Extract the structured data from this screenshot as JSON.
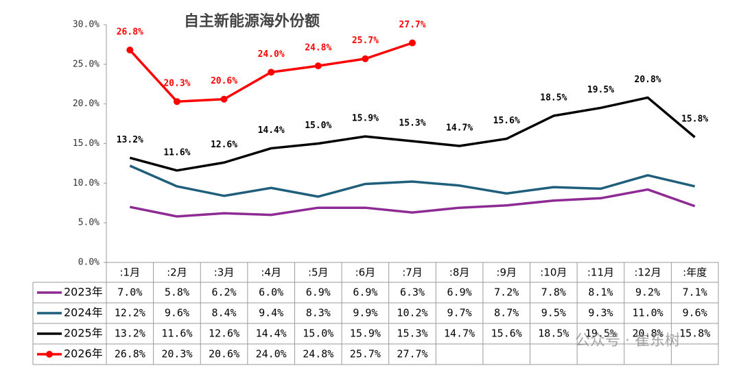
{
  "chart_data": {
    "type": "line",
    "title": "自主新能源海外份额",
    "categories": [
      ":1月",
      ":2月",
      ":3月",
      ":4月",
      ":5月",
      ":6月",
      ":7月",
      ":8月",
      ":9月",
      ":10月",
      ":11月",
      ":12月",
      ":年度"
    ],
    "ylim": [
      0,
      30
    ],
    "yticks": [
      {
        "value": 0,
        "label": "0.0%"
      },
      {
        "value": 5,
        "label": "5.0%"
      },
      {
        "value": 10,
        "label": "10.0%"
      },
      {
        "value": 15,
        "label": "15.0%"
      },
      {
        "value": 20,
        "label": "20.0%"
      },
      {
        "value": 25,
        "label": "25.0%"
      },
      {
        "value": 30,
        "label": "30.0%"
      }
    ],
    "series": [
      {
        "name": "2023年",
        "color": "#8e2a94",
        "data_labels": false,
        "markers": false,
        "values": [
          7.0,
          5.8,
          6.2,
          6.0,
          6.9,
          6.9,
          6.3,
          6.9,
          7.2,
          7.8,
          8.1,
          9.2,
          7.1
        ],
        "value_labels": [
          "7.0%",
          "5.8%",
          "6.2%",
          "6.0%",
          "6.9%",
          "6.9%",
          "6.3%",
          "6.9%",
          "7.2%",
          "7.8%",
          "8.1%",
          "9.2%",
          "7.1%"
        ]
      },
      {
        "name": "2024年",
        "color": "#1f5f7c",
        "data_labels": false,
        "markers": false,
        "values": [
          12.2,
          9.6,
          8.4,
          9.4,
          8.3,
          9.9,
          10.2,
          9.7,
          8.7,
          9.5,
          9.3,
          11.0,
          9.6
        ],
        "value_labels": [
          "12.2%",
          "9.6%",
          "8.4%",
          "9.4%",
          "8.3%",
          "9.9%",
          "10.2%",
          "9.7%",
          "8.7%",
          "9.5%",
          "9.3%",
          "11.0%",
          "9.6%"
        ]
      },
      {
        "name": "2025年",
        "color": "#000000",
        "data_labels": true,
        "markers": false,
        "values": [
          13.2,
          11.6,
          12.6,
          14.4,
          15.0,
          15.9,
          15.3,
          14.7,
          15.6,
          18.5,
          19.5,
          20.8,
          15.8
        ],
        "value_labels": [
          "13.2%",
          "11.6%",
          "12.6%",
          "14.4%",
          "15.0%",
          "15.9%",
          "15.3%",
          "14.7%",
          "15.6%",
          "18.5%",
          "19.5%",
          "20.8%",
          "15.8%"
        ]
      },
      {
        "name": "2026年",
        "color": "#ff0000",
        "data_labels": true,
        "markers": true,
        "values": [
          26.8,
          20.3,
          20.6,
          24.0,
          24.8,
          25.7,
          27.7,
          null,
          null,
          null,
          null,
          null,
          null
        ],
        "value_labels": [
          "26.8%",
          "20.3%",
          "20.6%",
          "24.0%",
          "24.8%",
          "25.7%",
          "27.7%",
          null,
          null,
          null,
          null,
          null,
          null
        ]
      }
    ],
    "watermark": "公众号 · 崔东树"
  }
}
